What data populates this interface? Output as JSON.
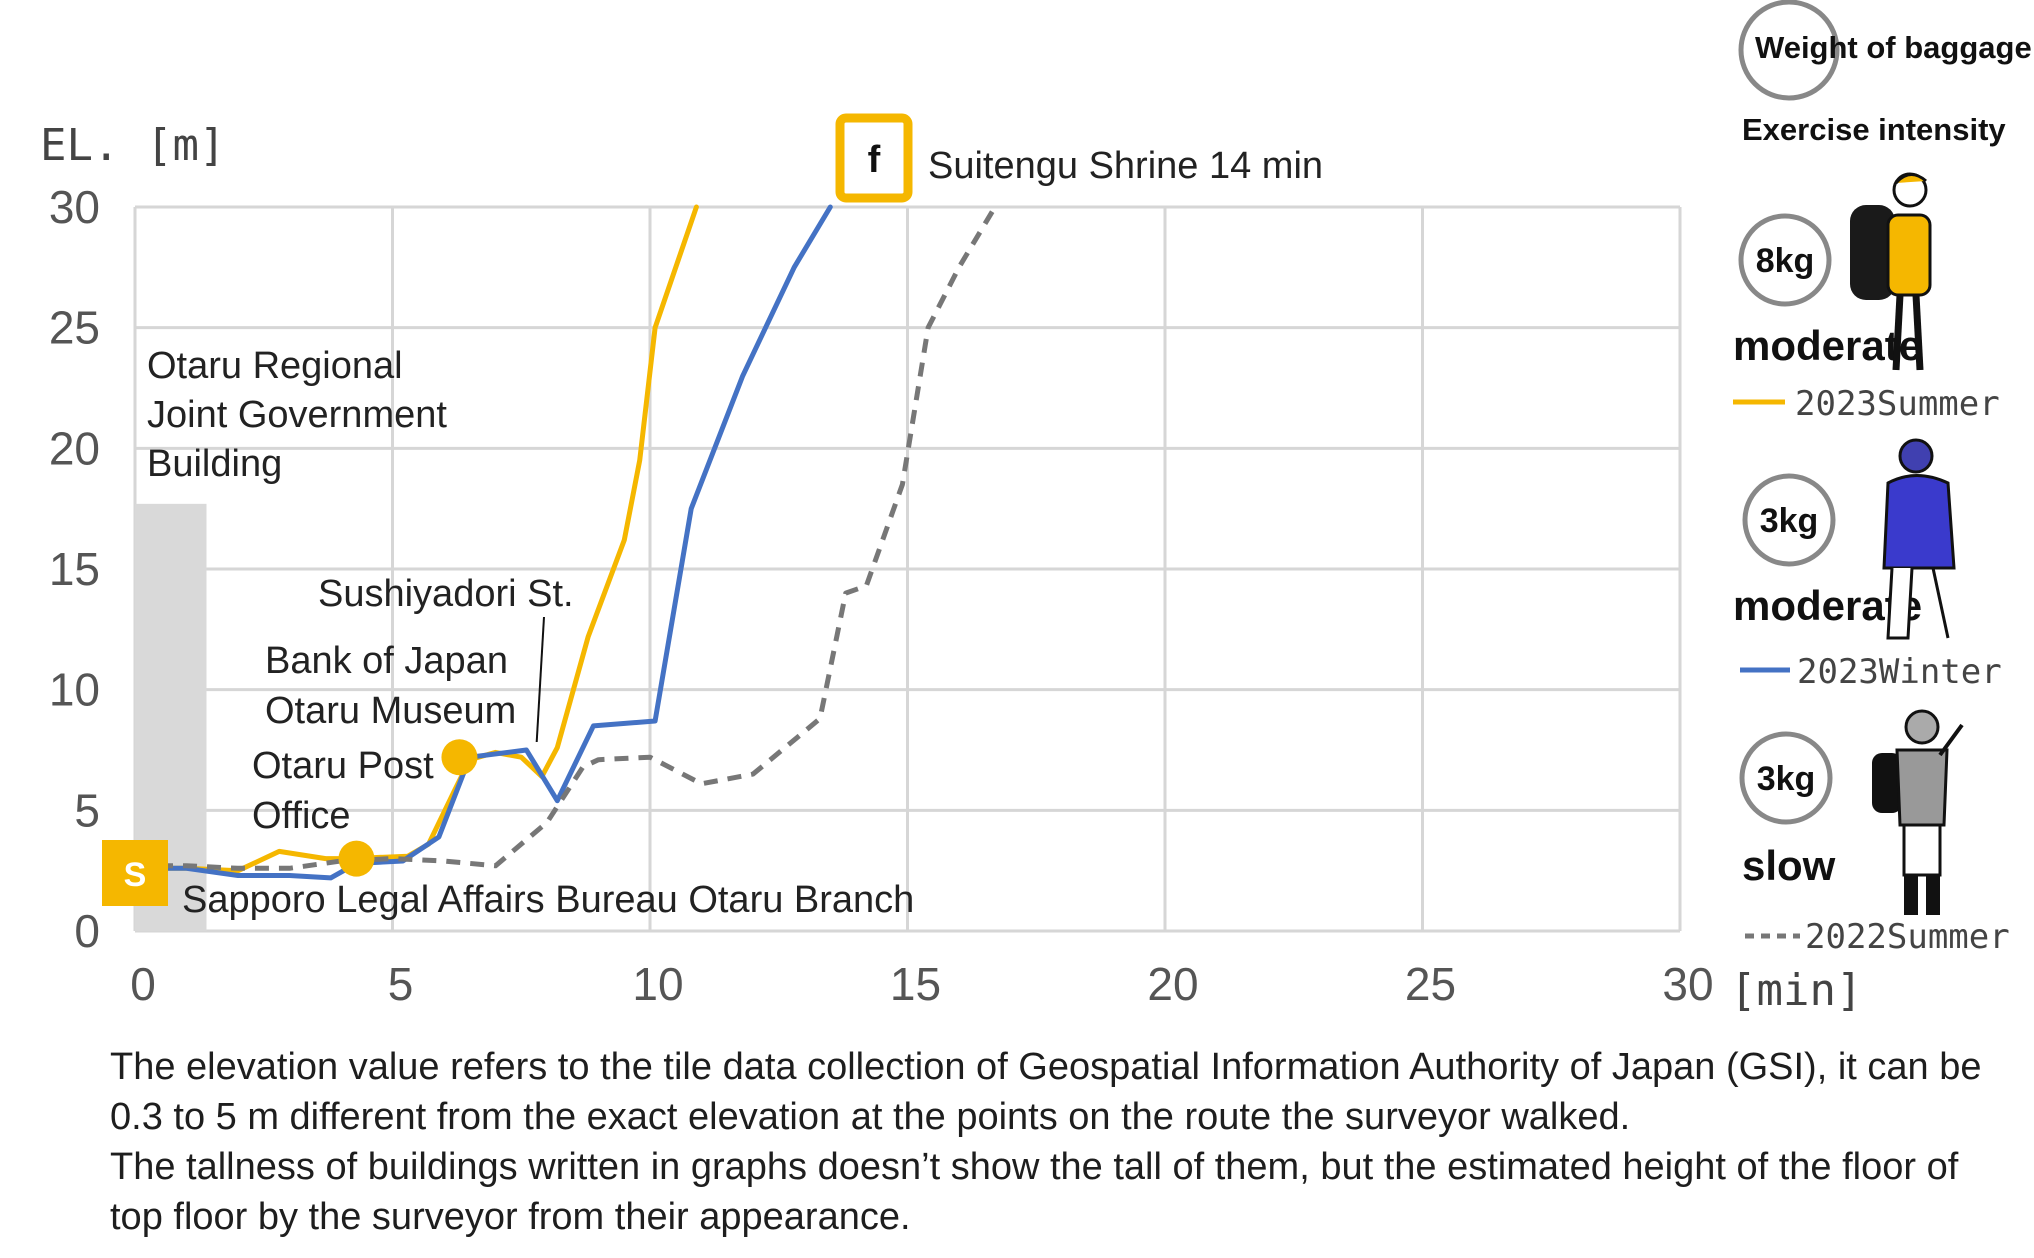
{
  "chart_data": {
    "type": "line",
    "ylabel": "EL. [m]",
    "xlabel": "[min]",
    "xlim": [
      0,
      30
    ],
    "ylim": [
      0,
      30
    ],
    "x_ticks": [
      "0",
      "5",
      "10",
      "15",
      "20",
      "25",
      "30"
    ],
    "y_ticks": [
      "0",
      "5",
      "10",
      "15",
      "20",
      "25",
      "30"
    ],
    "grid": true,
    "series": [
      {
        "name": "2023Summer",
        "color": "#F5B700",
        "style": "solid",
        "points": [
          [
            0,
            2.6
          ],
          [
            1,
            2.6
          ],
          [
            2,
            2.5
          ],
          [
            2.8,
            3.3
          ],
          [
            3.7,
            3.0
          ],
          [
            4.2,
            3.0
          ],
          [
            5.3,
            3.1
          ],
          [
            5.7,
            3.6
          ],
          [
            6.2,
            5.8
          ],
          [
            6.5,
            7.1
          ],
          [
            7.0,
            7.4
          ],
          [
            7.5,
            7.2
          ],
          [
            7.9,
            6.4
          ],
          [
            8.2,
            7.6
          ],
          [
            8.8,
            12.2
          ],
          [
            9.5,
            16.2
          ],
          [
            9.8,
            19.5
          ],
          [
            10.1,
            25.0
          ],
          [
            10.9,
            30.0
          ]
        ]
      },
      {
        "name": "2023Winter",
        "color": "#4472C4",
        "style": "solid",
        "points": [
          [
            0,
            2.6
          ],
          [
            1,
            2.6
          ],
          [
            2,
            2.3
          ],
          [
            3,
            2.3
          ],
          [
            3.8,
            2.2
          ],
          [
            4.3,
            2.8
          ],
          [
            5.2,
            2.9
          ],
          [
            5.9,
            3.9
          ],
          [
            6.5,
            7.2
          ],
          [
            7.6,
            7.5
          ],
          [
            8.2,
            5.4
          ],
          [
            8.9,
            8.5
          ],
          [
            10.1,
            8.7
          ],
          [
            10.8,
            17.5
          ],
          [
            11.8,
            23.0
          ],
          [
            12.8,
            27.5
          ],
          [
            13.5,
            30.0
          ]
        ]
      },
      {
        "name": "2022Summer",
        "color": "#777777",
        "style": "dashed",
        "points": [
          [
            0,
            2.7
          ],
          [
            1,
            2.7
          ],
          [
            2,
            2.6
          ],
          [
            3,
            2.6
          ],
          [
            4,
            2.9
          ],
          [
            5,
            3.0
          ],
          [
            6,
            2.9
          ],
          [
            7,
            2.7
          ],
          [
            8,
            4.5
          ],
          [
            8.7,
            6.8
          ],
          [
            9,
            7.1
          ],
          [
            10,
            7.2
          ],
          [
            11,
            6.1
          ],
          [
            12,
            6.5
          ],
          [
            13.3,
            8.8
          ],
          [
            13.8,
            14.0
          ],
          [
            14.2,
            14.3
          ],
          [
            14.9,
            18.5
          ],
          [
            15.4,
            25.0
          ],
          [
            16.0,
            27.5
          ],
          [
            16.7,
            30.0
          ]
        ]
      }
    ],
    "buildings": [
      {
        "label": "Otaru Regional Joint Government Building",
        "lines": [
          "Otaru Regional",
          "Joint Government",
          "Building"
        ],
        "x_range": [
          0,
          1.0
        ],
        "height": 17.7,
        "color": "#D9D9D9"
      }
    ],
    "points_of_interest": [
      {
        "label": "Otaru Post Office",
        "lines": [
          "Otaru Post",
          "Office"
        ],
        "x": 4.3,
        "y": 3.0,
        "color": "#F5B700"
      },
      {
        "label": "Bank of Japan Otaru Museum",
        "lines": [
          "Bank of Japan",
          "Otaru Museum"
        ],
        "x": 6.3,
        "y": 7.2,
        "color": "#F5B700"
      }
    ],
    "annotations": [
      {
        "label": "Sushiyadori St.",
        "x": 7.8,
        "y": 7.5
      },
      {
        "label": "Sapporo Legal Affairs Bureau Otaru Branch"
      }
    ],
    "start_marker": {
      "letter": "S",
      "color": "#F5B700"
    },
    "end_marker": {
      "letter": "f",
      "label": "Suitengu Shrine 14 min",
      "color": "#F5B700"
    },
    "legend": {
      "position": "right",
      "header_weight": "Weight of baggage",
      "header_intensity": "Exercise intensity",
      "entries": [
        {
          "weight": "8kg",
          "intensity": "moderate",
          "series": "2023Summer",
          "figure": "hiker-yellow-backpack-icon"
        },
        {
          "weight": "3kg",
          "intensity": "moderate",
          "series": "2023Winter",
          "figure": "hiker-blue-hoodie-icon"
        },
        {
          "weight": "3kg",
          "intensity": "slow",
          "series": "2022Summer",
          "figure": "hiker-grey-vest-icon"
        }
      ]
    }
  },
  "footnote": {
    "line1": "The elevation value refers to the tile data collection of Geospatial Information Authority of Japan (GSI), it can be 0.3 to 5 m different from the exact elevation at the points on the route the surveyor walked.",
    "line2": "The tallness of buildings written in graphs doesn’t show the tall of them, but the estimated height of the floor of top floor by the surveyor from their appearance."
  }
}
